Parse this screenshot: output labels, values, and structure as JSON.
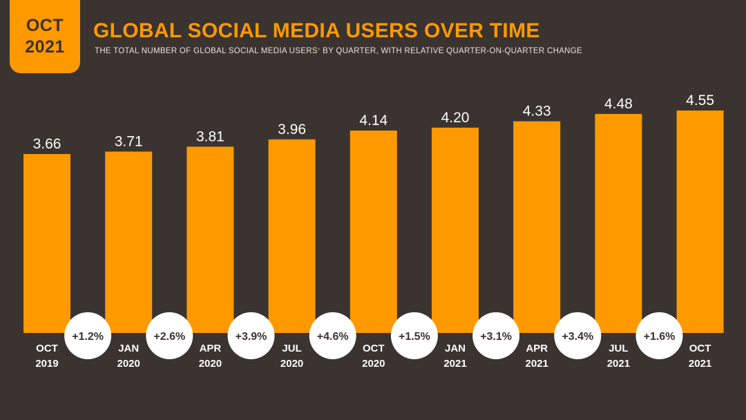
{
  "header": {
    "badge_month": "OCT",
    "badge_year": "2021",
    "title": "GLOBAL SOCIAL MEDIA USERS OVER TIME",
    "subtitle_before": "THE TOTAL NUMBER OF GLOBAL SOCIAL MEDIA USERS",
    "subtitle_marker": "*",
    "subtitle_after": " BY QUARTER, WITH RELATIVE QUARTER-ON-QUARTER CHANGE"
  },
  "colors": {
    "background": "#3a3330",
    "bar": "#ff9900",
    "text_light": "#ffffff",
    "circle": "#ffffff",
    "circle_text": "#3a3330"
  },
  "chart_data": {
    "type": "bar",
    "title": "GLOBAL SOCIAL MEDIA USERS OVER TIME",
    "categories": [
      [
        "OCT",
        "2019"
      ],
      [
        "JAN",
        "2020"
      ],
      [
        "APR",
        "2020"
      ],
      [
        "JUL",
        "2020"
      ],
      [
        "OCT",
        "2020"
      ],
      [
        "JAN",
        "2021"
      ],
      [
        "APR",
        "2021"
      ],
      [
        "JUL",
        "2021"
      ],
      [
        "OCT",
        "2021"
      ]
    ],
    "values": [
      3.66,
      3.71,
      3.81,
      3.96,
      4.14,
      4.2,
      4.33,
      4.48,
      4.55
    ],
    "value_labels": [
      "3.66",
      "3.71",
      "3.81",
      "3.96",
      "4.14",
      "4.20",
      "4.33",
      "4.48",
      "4.55"
    ],
    "changes": [
      "+1.2%",
      "+2.6%",
      "+3.9%",
      "+4.6%",
      "+1.5%",
      "+3.1%",
      "+3.4%",
      "+1.6%"
    ],
    "xlabel": "",
    "ylabel": ""
  }
}
